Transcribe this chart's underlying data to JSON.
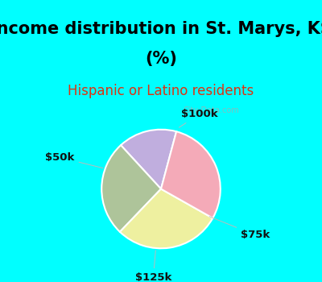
{
  "title_line1": "Income distribution in St. Marys, KS",
  "title_line2": "(%)",
  "subtitle": "Hispanic or Latino residents",
  "labels": [
    "$100k",
    "$75k",
    "$125k",
    "$50k"
  ],
  "values": [
    16,
    26,
    29,
    29
  ],
  "colors": [
    "#c0aede",
    "#b5c99a",
    "#eef0a0",
    "#f4aaB8"
  ],
  "pie_colors": [
    "#c0aede",
    "#aec49a",
    "#eef0a0",
    "#f4aab8"
  ],
  "title_fontsize": 15,
  "subtitle_fontsize": 12,
  "subtitle_color": "#dd3311",
  "bg_cyan": "#00ffff",
  "label_color": "#111111",
  "label_fontsize": 9.5,
  "startangle": 75,
  "watermark": "City-Data.com",
  "watermark_color": "#aaaaaa"
}
